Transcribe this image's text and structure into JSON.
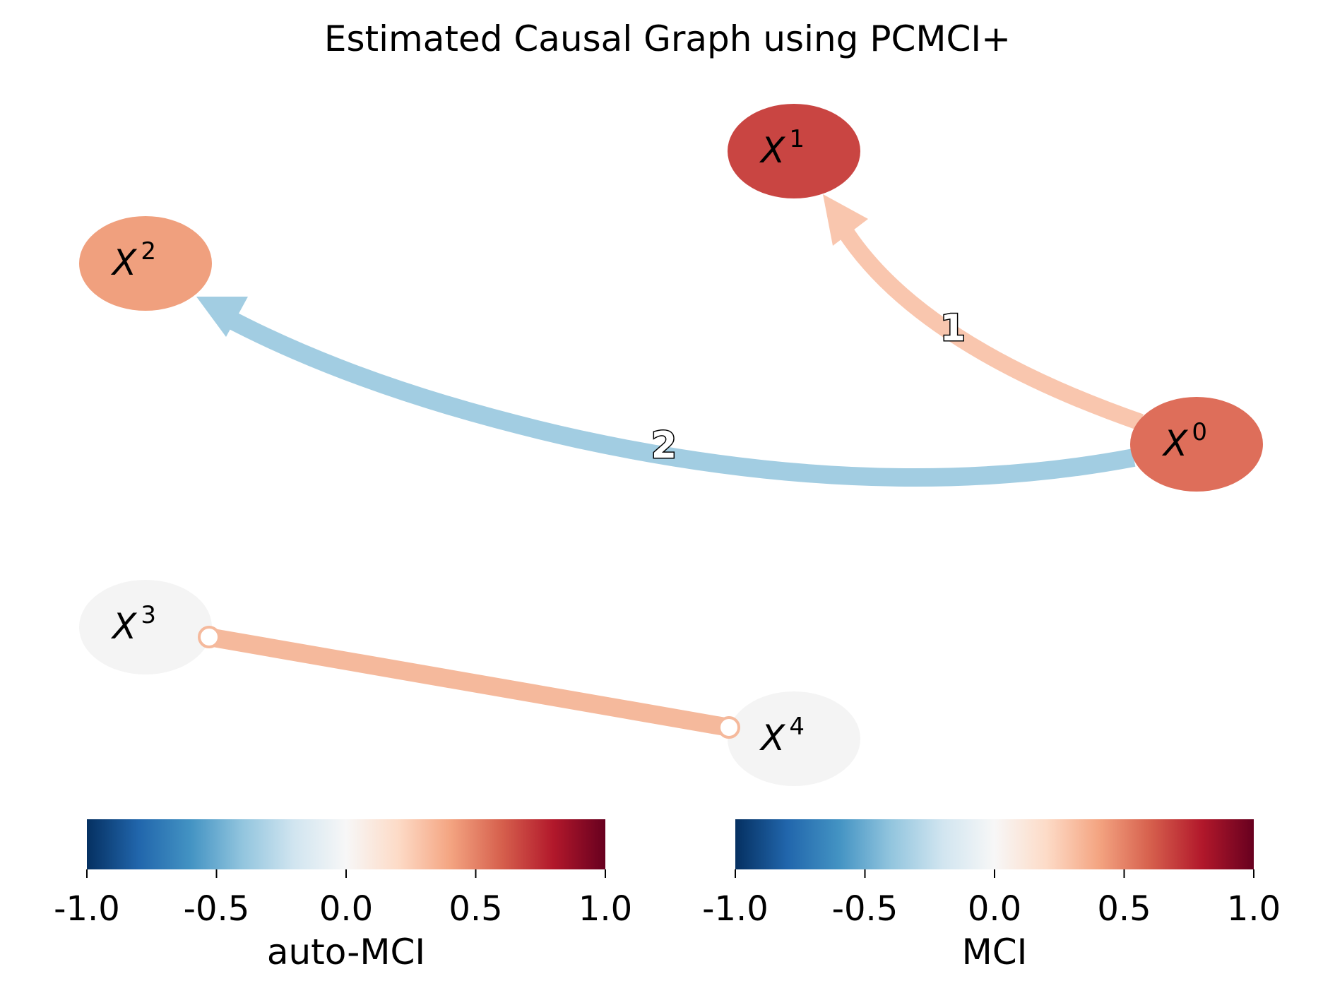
{
  "title": "Estimated Causal Graph using PCMCI+",
  "nodes": [
    {
      "id": "X0",
      "base": "X",
      "sup": "0",
      "color": "#de6e5a"
    },
    {
      "id": "X1",
      "base": "X",
      "sup": "1",
      "color": "#c94542"
    },
    {
      "id": "X2",
      "base": "X",
      "sup": "2",
      "color": "#f0a07e"
    },
    {
      "id": "X3",
      "base": "X",
      "sup": "3",
      "color": "#f4f4f4"
    },
    {
      "id": "X4",
      "base": "X",
      "sup": "4",
      "color": "#f4f4f4"
    }
  ],
  "edges": [
    {
      "from": "X0",
      "to": "X1",
      "type": "directed",
      "label": "1",
      "color": "#f9c6ae"
    },
    {
      "from": "X0",
      "to": "X2",
      "type": "directed",
      "label": "2",
      "color": "#a2cde2"
    },
    {
      "from": "X3",
      "to": "X4",
      "type": "circle-circle",
      "label": "",
      "color": "#f5b99c"
    }
  ],
  "colorbars": [
    {
      "label": "auto-MCI",
      "ticks": [
        "-1.0",
        "-0.5",
        "0.0",
        "0.5",
        "1.0"
      ],
      "range": [
        -1.0,
        1.0
      ],
      "colormap": "RdBu_r"
    },
    {
      "label": "MCI",
      "ticks": [
        "-1.0",
        "-0.5",
        "0.0",
        "0.5",
        "1.0"
      ],
      "range": [
        -1.0,
        1.0
      ],
      "colormap": "RdBu_r"
    }
  ]
}
